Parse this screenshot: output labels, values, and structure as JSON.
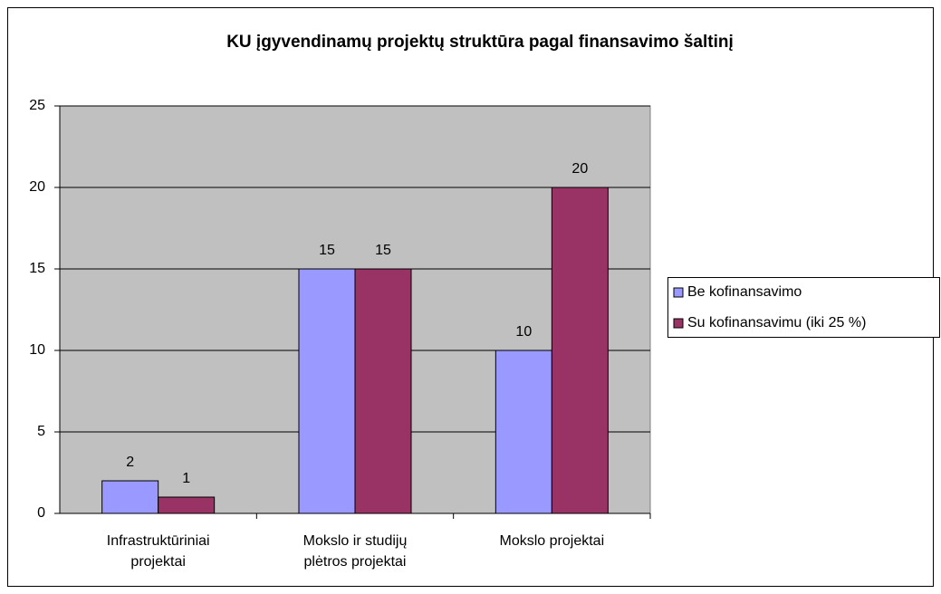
{
  "chart_data": {
    "type": "bar",
    "title": "KU įgyvendinamų projektų struktūra pagal finansavimo šaltinį",
    "categories": [
      [
        "Infrastruktūriniai",
        "projektai"
      ],
      [
        "Mokslo ir studijų",
        "plėtros projektai"
      ],
      [
        "Mokslo projektai"
      ]
    ],
    "series": [
      {
        "name": "Be kofinansavimo",
        "color": "#9999ff",
        "values": [
          2,
          15,
          10
        ]
      },
      {
        "name": "Su kofinansavimu (iki 25 %)",
        "color": "#993366",
        "values": [
          1,
          15,
          20
        ]
      }
    ],
    "ylim": [
      0,
      25
    ],
    "yticks": [
      0,
      5,
      10,
      15,
      20,
      25
    ],
    "grid": true,
    "legend": "right"
  }
}
